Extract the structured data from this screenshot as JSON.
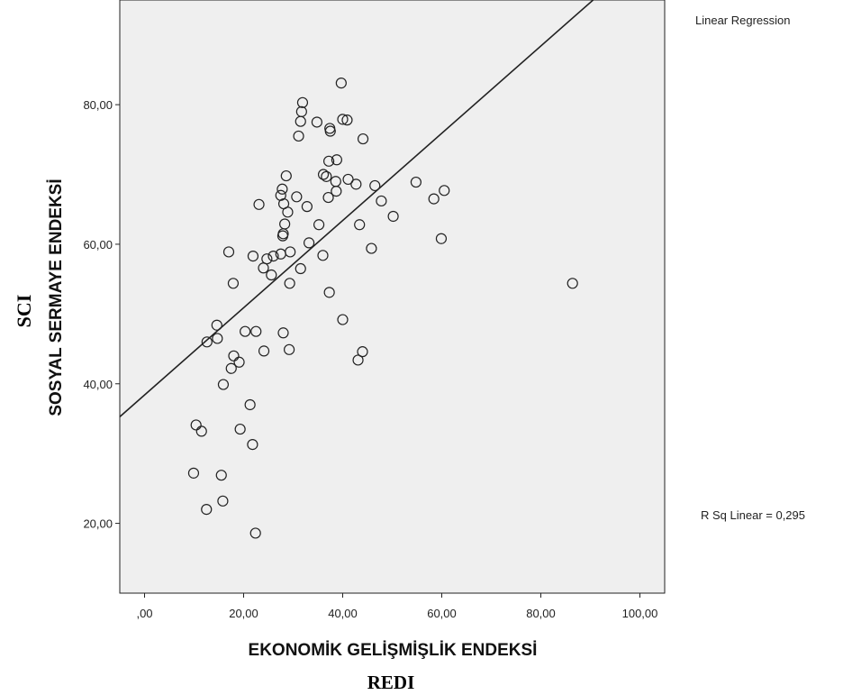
{
  "chart_data": {
    "type": "scatter",
    "xlabel": "EKONOMİK GELİŞMİŞLİK ENDEKSİ",
    "ylabel": "SOSYAL SERMAYE ENDEKSİ",
    "x_short_label": "REDI",
    "y_short_label": "SCI",
    "xlim": [
      -5,
      105
    ],
    "ylim": [
      10,
      95
    ],
    "x_ticks": [
      0,
      20,
      40,
      60,
      80,
      100
    ],
    "x_tick_labels": [
      ",00",
      "20,00",
      "40,00",
      "60,00",
      "80,00",
      "100,00"
    ],
    "y_ticks": [
      20,
      40,
      60,
      80
    ],
    "y_tick_labels": [
      "20,00",
      "40,00",
      "60,00",
      "80,00"
    ],
    "grid": false,
    "fit_line": {
      "label": "Linear Regression",
      "intercept": 38.4,
      "slope": 0.625
    },
    "r_squared_label": "R Sq Linear = 0,295",
    "points": [
      [
        39.7,
        83.1
      ],
      [
        31.9,
        80.3
      ],
      [
        31.7,
        79.0
      ],
      [
        31.5,
        77.6
      ],
      [
        34.8,
        77.5
      ],
      [
        40.0,
        77.9
      ],
      [
        40.9,
        77.8
      ],
      [
        37.4,
        76.6
      ],
      [
        37.5,
        76.2
      ],
      [
        31.1,
        75.5
      ],
      [
        44.1,
        75.1
      ],
      [
        37.2,
        71.9
      ],
      [
        38.8,
        72.1
      ],
      [
        36.1,
        70.0
      ],
      [
        36.7,
        69.7
      ],
      [
        28.6,
        69.8
      ],
      [
        38.6,
        69.0
      ],
      [
        41.1,
        69.3
      ],
      [
        42.7,
        68.6
      ],
      [
        27.8,
        67.9
      ],
      [
        27.5,
        67.0
      ],
      [
        30.7,
        66.8
      ],
      [
        37.1,
        66.7
      ],
      [
        38.7,
        67.6
      ],
      [
        28.1,
        65.8
      ],
      [
        23.1,
        65.7
      ],
      [
        32.8,
        65.4
      ],
      [
        28.9,
        64.6
      ],
      [
        28.3,
        62.9
      ],
      [
        35.2,
        62.8
      ],
      [
        28.0,
        61.5
      ],
      [
        27.9,
        61.2
      ],
      [
        33.2,
        60.2
      ],
      [
        17.0,
        58.9
      ],
      [
        21.9,
        58.3
      ],
      [
        24.7,
        57.9
      ],
      [
        26.0,
        58.3
      ],
      [
        27.5,
        58.6
      ],
      [
        29.4,
        58.9
      ],
      [
        24.0,
        56.6
      ],
      [
        31.5,
        56.5
      ],
      [
        25.6,
        55.6
      ],
      [
        17.9,
        54.4
      ],
      [
        29.3,
        54.4
      ],
      [
        37.3,
        53.1
      ],
      [
        36.0,
        58.4
      ],
      [
        14.6,
        48.4
      ],
      [
        14.7,
        46.5
      ],
      [
        12.6,
        46.0
      ],
      [
        20.3,
        47.5
      ],
      [
        22.5,
        47.5
      ],
      [
        28.0,
        47.3
      ],
      [
        18.0,
        44.0
      ],
      [
        19.1,
        43.1
      ],
      [
        17.5,
        42.2
      ],
      [
        24.1,
        44.7
      ],
      [
        29.2,
        44.9
      ],
      [
        15.9,
        39.9
      ],
      [
        21.3,
        37.0
      ],
      [
        40.0,
        49.2
      ],
      [
        44.0,
        44.6
      ],
      [
        43.1,
        43.4
      ],
      [
        43.4,
        62.8
      ],
      [
        45.8,
        59.4
      ],
      [
        46.5,
        68.4
      ],
      [
        47.8,
        66.2
      ],
      [
        50.2,
        64.0
      ],
      [
        54.8,
        68.9
      ],
      [
        58.4,
        66.5
      ],
      [
        60.5,
        67.7
      ],
      [
        59.9,
        60.8
      ],
      [
        86.4,
        54.4
      ],
      [
        10.4,
        34.1
      ],
      [
        11.5,
        33.2
      ],
      [
        19.3,
        33.5
      ],
      [
        21.8,
        31.3
      ],
      [
        9.9,
        27.2
      ],
      [
        15.5,
        26.9
      ],
      [
        15.8,
        23.2
      ],
      [
        12.5,
        22.0
      ],
      [
        22.4,
        18.6
      ]
    ]
  }
}
